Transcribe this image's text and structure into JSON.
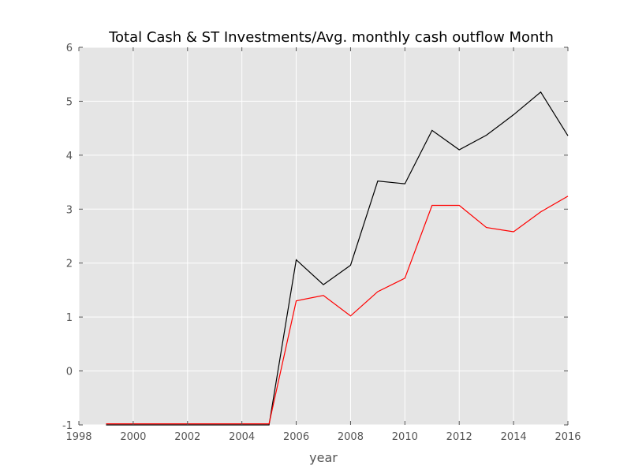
{
  "chart_data": {
    "type": "line",
    "title": "Total Cash & ST Investments/Avg. monthly cash outflow Month",
    "xlabel": "year",
    "ylabel": "",
    "xlim": [
      1998,
      2016
    ],
    "ylim": [
      -1,
      6
    ],
    "xticks": [
      1998,
      2000,
      2002,
      2004,
      2006,
      2008,
      2010,
      2012,
      2014,
      2016
    ],
    "yticks": [
      -1,
      0,
      1,
      2,
      3,
      4,
      5,
      6
    ],
    "grid": true,
    "background": "#e5e5e5",
    "grid_color": "#ffffff",
    "series": [
      {
        "color": "#000000",
        "x": [
          1999,
          2000,
          2001,
          2002,
          2003,
          2004,
          2005,
          2006,
          2007,
          2008,
          2009,
          2010,
          2011,
          2012,
          2013,
          2014,
          2015,
          2016
        ],
        "y": [
          -1.0,
          -1.0,
          -1.0,
          -1.0,
          -1.0,
          -1.0,
          -1.0,
          2.06,
          1.6,
          1.96,
          3.52,
          3.47,
          4.46,
          4.1,
          4.37,
          4.75,
          5.17,
          4.36
        ]
      },
      {
        "color": "#ff0000",
        "x": [
          1999,
          2000,
          2001,
          2002,
          2003,
          2004,
          2005,
          2006,
          2007,
          2008,
          2009,
          2010,
          2011,
          2012,
          2013,
          2014,
          2015,
          2016
        ],
        "y": [
          -0.98,
          -0.98,
          -0.98,
          -0.98,
          -0.98,
          -0.98,
          -0.98,
          1.3,
          1.4,
          1.02,
          1.47,
          1.72,
          3.07,
          3.07,
          2.66,
          2.58,
          2.95,
          3.24
        ]
      }
    ]
  }
}
